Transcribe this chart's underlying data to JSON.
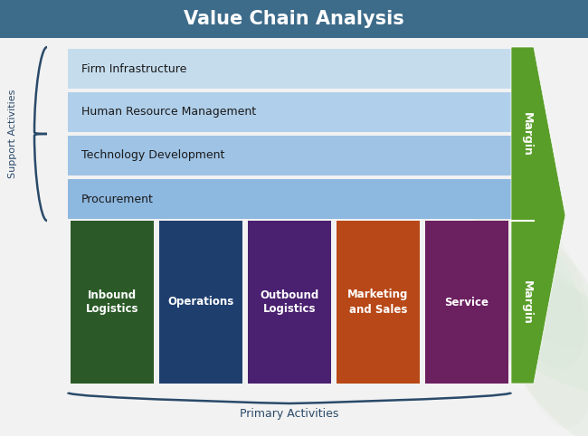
{
  "title": "Value Chain Analysis",
  "title_bg_color": "#3d6b8a",
  "title_text_color": "#ffffff",
  "bg_color": "#f2f2f2",
  "support_activities": [
    {
      "label": "Firm Infrastructure",
      "color": "#c5dced"
    },
    {
      "label": "Human Resource Management",
      "color": "#b0cfea"
    },
    {
      "label": "Technology Development",
      "color": "#9ec3e5"
    },
    {
      "label": "Procurement",
      "color": "#8db8e0"
    }
  ],
  "primary_activities": [
    {
      "label": "Inbound\nLogistics",
      "color": "#2b5a28"
    },
    {
      "label": "Operations",
      "color": "#1e3f6e"
    },
    {
      "label": "Outbound\nLogistics",
      "color": "#4a2070"
    },
    {
      "label": "Marketing\nand Sales",
      "color": "#b84818"
    },
    {
      "label": "Service",
      "color": "#6b2060"
    }
  ],
  "margin_color": "#5a9e2a",
  "margin_text": "Margin",
  "support_label": "Support Activities",
  "primary_label": "Primary Activities",
  "support_text_color": "#1a1a1a",
  "label_color": "#2a4a6a"
}
